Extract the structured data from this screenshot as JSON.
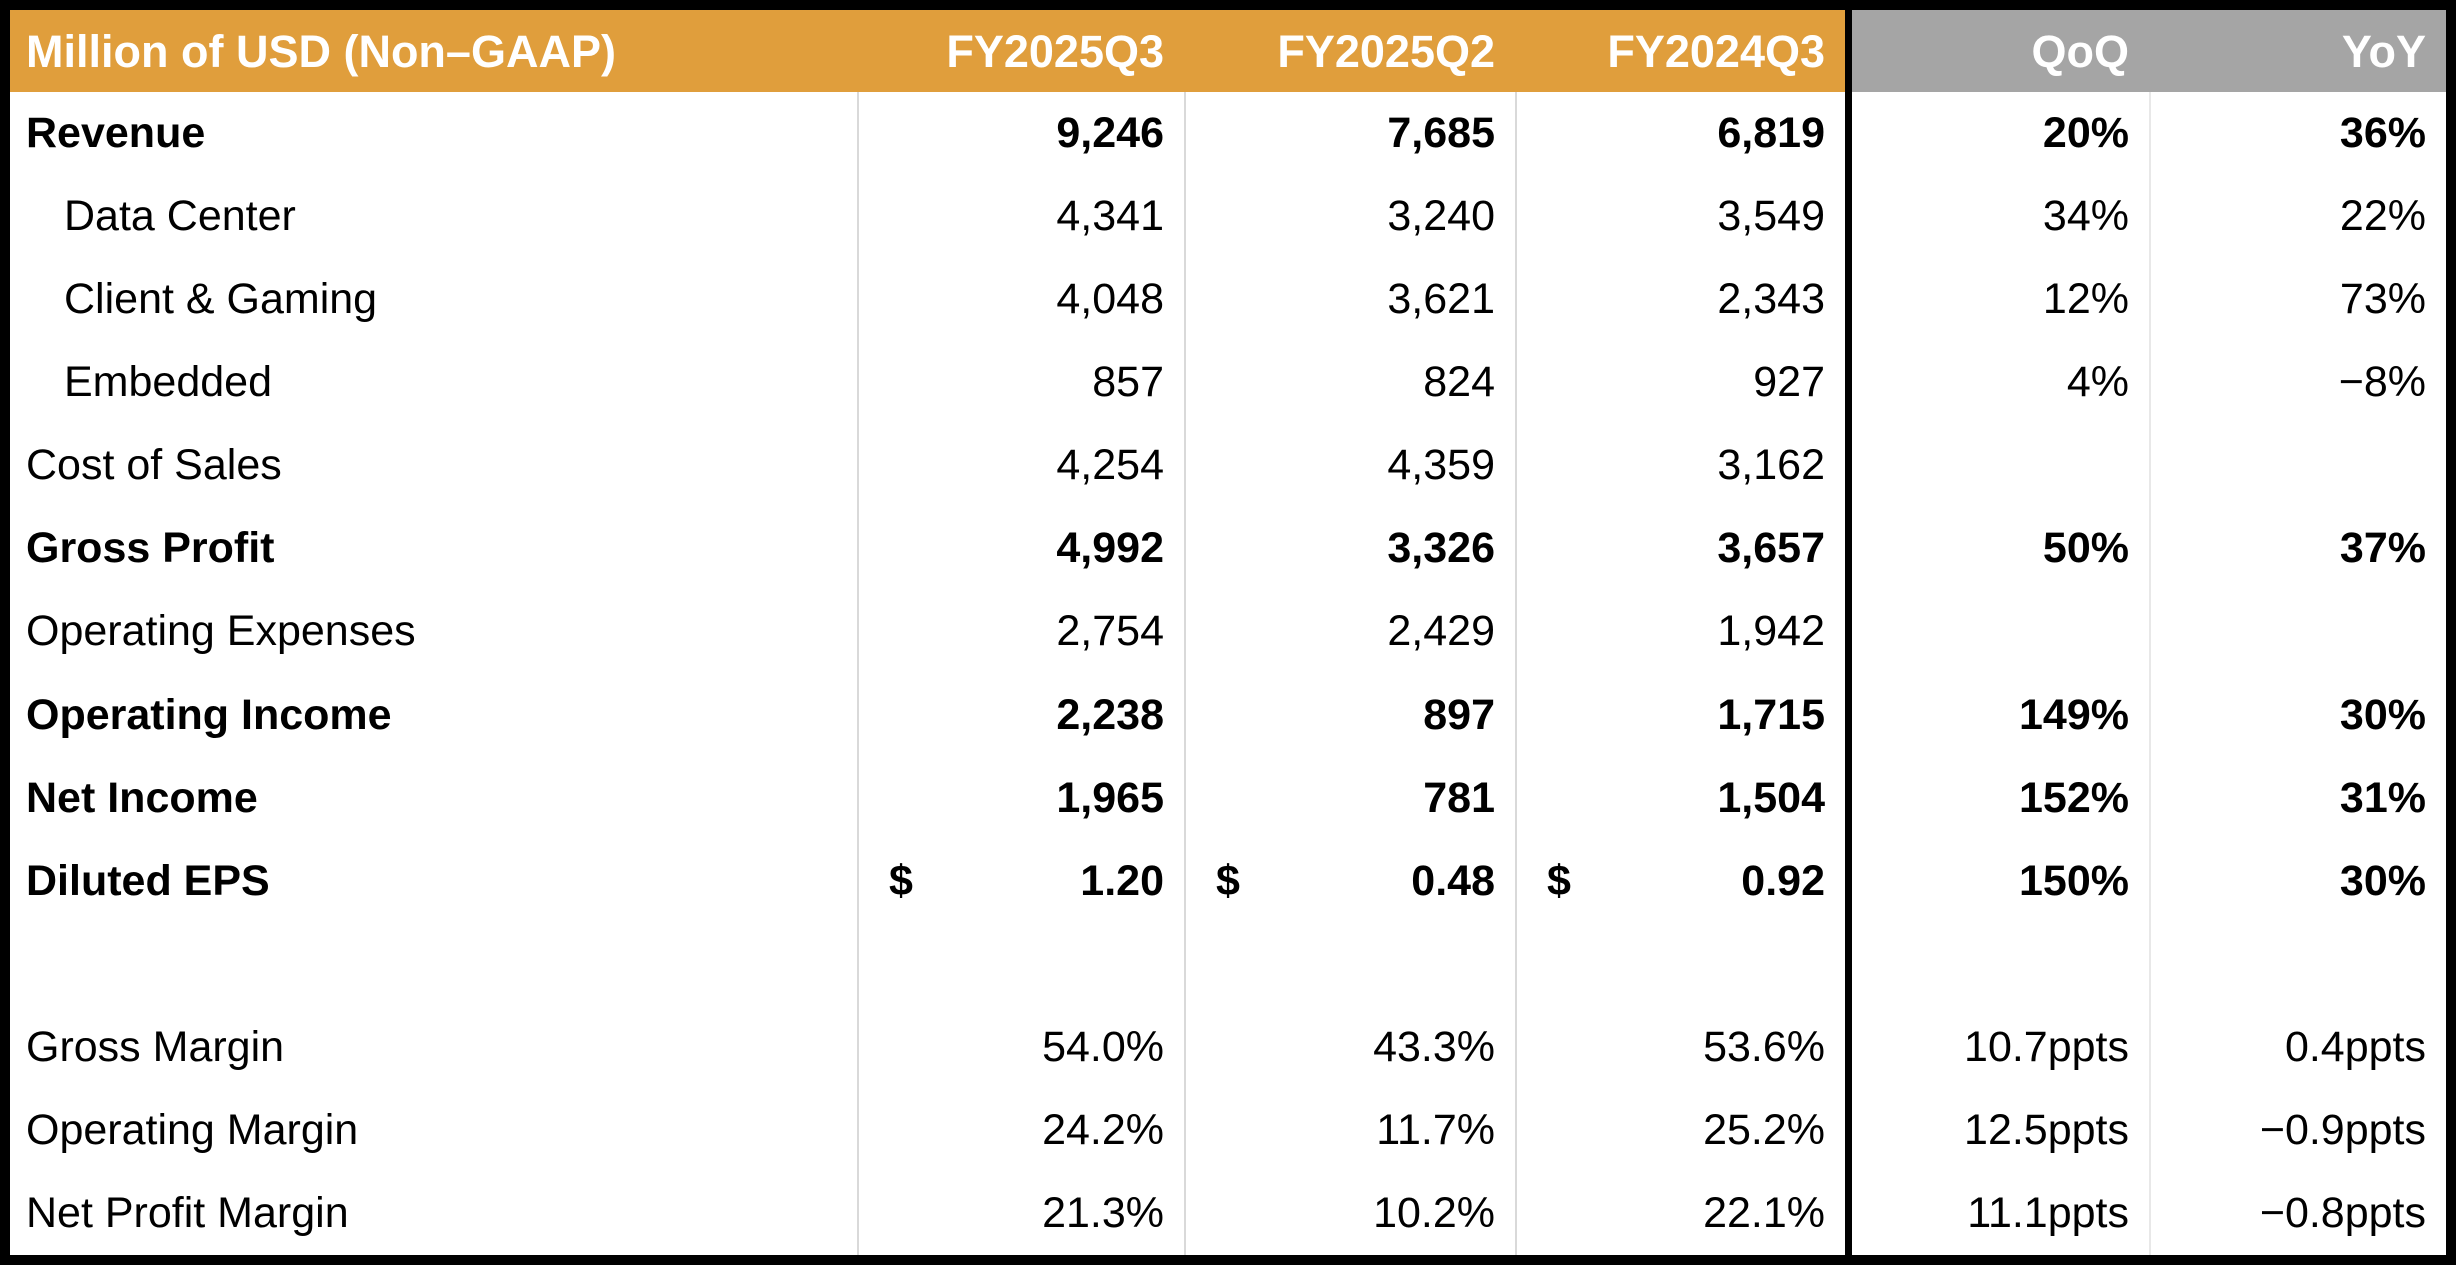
{
  "chart_data": {
    "type": "table",
    "title": "Million of USD (Non–GAAP)",
    "headers": [
      "Million of USD (Non–GAAP)",
      "FY2025Q3",
      "FY2025Q2",
      "FY2024Q3",
      "QoQ",
      "YoY"
    ],
    "rows": [
      {
        "label": "Revenue",
        "indent": false,
        "bold": true,
        "values": [
          "9,246",
          "7,685",
          "6,819",
          "20%",
          "36%"
        ]
      },
      {
        "label": "Data Center",
        "indent": true,
        "bold": false,
        "values": [
          "4,341",
          "3,240",
          "3,549",
          "34%",
          "22%"
        ]
      },
      {
        "label": "Client & Gaming",
        "indent": true,
        "bold": false,
        "values": [
          "4,048",
          "3,621",
          "2,343",
          "12%",
          "73%"
        ]
      },
      {
        "label": "Embedded",
        "indent": true,
        "bold": false,
        "values": [
          "857",
          "824",
          "927",
          "4%",
          "−8%"
        ]
      },
      {
        "label": "Cost of Sales",
        "indent": false,
        "bold": false,
        "values": [
          "4,254",
          "4,359",
          "3,162",
          "",
          ""
        ]
      },
      {
        "label": "Gross Profit",
        "indent": false,
        "bold": true,
        "values": [
          "4,992",
          "3,326",
          "3,657",
          "50%",
          "37%"
        ]
      },
      {
        "label": "Operating Expenses",
        "indent": false,
        "bold": false,
        "values": [
          "2,754",
          "2,429",
          "1,942",
          "",
          ""
        ]
      },
      {
        "label": "Operating Income",
        "indent": false,
        "bold": true,
        "values": [
          "2,238",
          "897",
          "1,715",
          "149%",
          "30%"
        ]
      },
      {
        "label": "Net Income",
        "indent": false,
        "bold": true,
        "values": [
          "1,965",
          "781",
          "1,504",
          "152%",
          "31%"
        ]
      },
      {
        "label": "Diluted EPS",
        "indent": false,
        "bold": true,
        "currency_symbol": "$",
        "values": [
          "1.20",
          "0.48",
          "0.92",
          "150%",
          "30%"
        ]
      },
      {
        "label": "",
        "indent": false,
        "bold": false,
        "values": [
          "",
          "",
          "",
          "",
          ""
        ]
      },
      {
        "label": "Gross Margin",
        "indent": false,
        "bold": false,
        "values": [
          "54.0%",
          "43.3%",
          "53.6%",
          "10.7ppts",
          "0.4ppts"
        ]
      },
      {
        "label": "Operating Margin",
        "indent": false,
        "bold": false,
        "values": [
          "24.2%",
          "11.7%",
          "25.2%",
          "12.5ppts",
          "−0.9ppts"
        ]
      },
      {
        "label": "Net Profit Margin",
        "indent": false,
        "bold": false,
        "values": [
          "21.3%",
          "10.2%",
          "22.1%",
          "11.1ppts",
          "−0.8ppts"
        ]
      }
    ],
    "layout": {
      "header_fill_periods": "#E09E3C",
      "header_fill_deltas": "#A5A5A5",
      "header_text_color": "#ffffff",
      "body_text_color": "#000000",
      "outer_border_color": "#000000",
      "thick_divider_before_column": "QoQ",
      "thin_divider_color": "#D9D9D9",
      "bold_rows": [
        "Revenue",
        "Gross Profit",
        "Operating Income",
        "Net Income",
        "Diluted EPS"
      ],
      "indented_rows": [
        "Data Center",
        "Client & Gaming",
        "Embedded"
      ],
      "value_alignment": "right",
      "grid": "vertical-dividers-only"
    }
  }
}
